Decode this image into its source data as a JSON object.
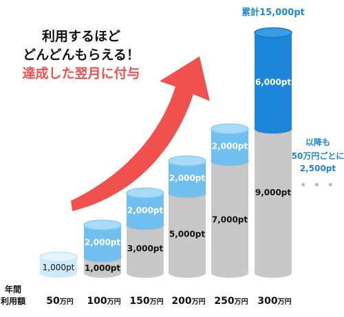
{
  "headline": {
    "line1": "利用するほど",
    "line2": "どんどんもらえる！",
    "line3": "達成した翌月に付与"
  },
  "side_note": {
    "line1": "以降も",
    "line2": "50万円ごとに",
    "line3": "2,500pt",
    "ellipsis": "• • •"
  },
  "colors": {
    "accent_red": "#f0514f",
    "blue_dark": "#1c86d8",
    "blue_light": "#6fbff0",
    "blue_pale": "#cdebfa",
    "gray_bar": "#c8c8c8"
  },
  "chart_data": {
    "type": "bar",
    "title": "",
    "xlabel": "年間\n利用額",
    "ylabel": "",
    "stacked": true,
    "total_label": "累計15,000pt",
    "categories": [
      "50万円",
      "100万円",
      "150万円",
      "200万円",
      "250万円",
      "300万円"
    ],
    "category_parts": [
      {
        "num": "50",
        "unit": "万円"
      },
      {
        "num": "100",
        "unit": "万円"
      },
      {
        "num": "150",
        "unit": "万円"
      },
      {
        "num": "200",
        "unit": "万円"
      },
      {
        "num": "250",
        "unit": "万円"
      },
      {
        "num": "300",
        "unit": "万円"
      }
    ],
    "series": [
      {
        "values": [
          1000,
          1000,
          3000,
          5000,
          7000,
          9000
        ],
        "labels": [
          "1,000pt",
          "1,000pt",
          "3,000pt",
          "5,000pt",
          "7,000pt",
          "9,000pt"
        ]
      },
      {
        "values": [
          0,
          2000,
          2000,
          2000,
          2000,
          6000
        ],
        "labels": [
          "",
          "2,000pt",
          "2,000pt",
          "2,000pt",
          "2,000pt",
          "6,000pt"
        ]
      }
    ]
  }
}
